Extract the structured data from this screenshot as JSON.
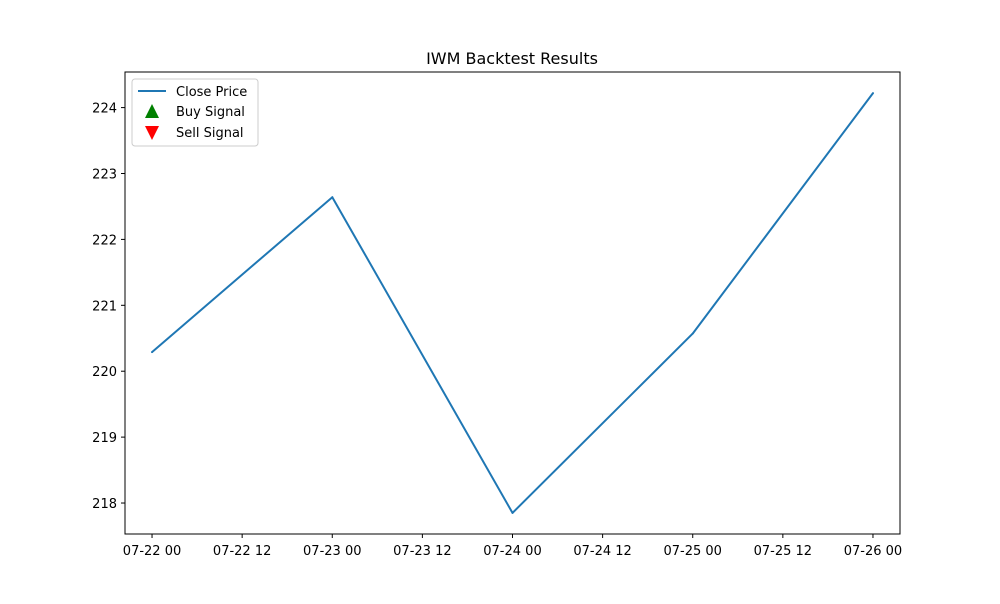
{
  "chart_data": {
    "type": "line",
    "title": "IWM Backtest Results",
    "xlabel": "",
    "ylabel": "",
    "x": [
      "2024-07-22 00:00",
      "2024-07-23 00:00",
      "2024-07-24 00:00",
      "2024-07-25 00:00",
      "2024-07-26 00:00"
    ],
    "series": [
      {
        "name": "Close Price",
        "color": "#1f77b4",
        "values": [
          220.29,
          222.64,
          217.85,
          220.57,
          224.22
        ]
      }
    ],
    "signals": [
      {
        "name": "Buy Signal",
        "marker": "triangle-up",
        "color": "#008000",
        "points": []
      },
      {
        "name": "Sell Signal",
        "marker": "triangle-down",
        "color": "#ff0000",
        "points": []
      }
    ],
    "x_ticks": [
      "07-22 00",
      "07-22 12",
      "07-23 00",
      "07-23 12",
      "07-24 00",
      "07-24 12",
      "07-25 00",
      "07-25 12",
      "07-26 00"
    ],
    "y_ticks": [
      218,
      219,
      220,
      221,
      222,
      223,
      224
    ],
    "xlim": [
      "2024-07-21 20:24",
      "2024-07-26 03:36"
    ],
    "ylim": [
      217.53,
      224.54
    ],
    "grid": false,
    "legend": {
      "position": "top-left",
      "entries": [
        "Close Price",
        "Buy Signal",
        "Sell Signal"
      ]
    }
  }
}
